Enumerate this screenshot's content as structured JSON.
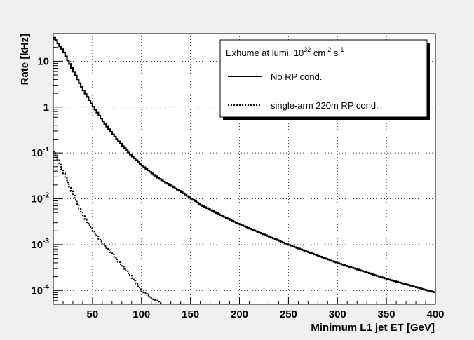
{
  "chart_data": {
    "type": "line",
    "xlabel": "Minimum L1 jet ET [GeV]",
    "ylabel": "Rate [kHz]",
    "xlim": [
      10,
      400
    ],
    "ylim": [
      5e-05,
      40
    ],
    "yscale": "log",
    "grid": true,
    "x_ticks": [
      "50",
      "100",
      "150",
      "200",
      "250",
      "300",
      "350",
      "400"
    ],
    "y_ticks": [
      {
        "base": "10",
        "exp": "-4",
        "value": 0.0001
      },
      {
        "base": "10",
        "exp": "-3",
        "value": 0.001
      },
      {
        "base": "10",
        "exp": "-2",
        "value": 0.01
      },
      {
        "base": "10",
        "exp": "-1",
        "value": 0.1
      },
      {
        "base": "1",
        "exp": "",
        "value": 1
      },
      {
        "base": "10",
        "exp": "",
        "value": 10
      }
    ],
    "legend": {
      "position": "top-right",
      "title": {
        "prefix": "Exhume at lumi. 10",
        "exp1": "32",
        "mid": " cm",
        "exp2": "-2",
        "mid2": " s",
        "exp3": "-1"
      }
    },
    "series": [
      {
        "name": "No RP cond.",
        "style": "solid",
        "color": "#000000",
        "x": [
          10,
          20,
          30,
          40,
          50,
          60,
          70,
          80,
          90,
          100,
          110,
          120,
          140,
          160,
          180,
          200,
          250,
          300,
          350,
          400
        ],
        "y": [
          35,
          17,
          6.5,
          2.5,
          1.1,
          0.52,
          0.27,
          0.15,
          0.087,
          0.055,
          0.037,
          0.026,
          0.0145,
          0.0075,
          0.0045,
          0.0028,
          0.001,
          0.0004,
          0.00018,
          9e-05
        ]
      },
      {
        "name": "single-arm 220m RP cond.",
        "style": "dotted",
        "color": "#000000",
        "x": [
          10,
          20,
          30,
          40,
          50,
          60,
          70,
          80,
          90,
          100,
          110,
          120
        ],
        "y": [
          0.12,
          0.04,
          0.013,
          0.0045,
          0.0021,
          0.0011,
          0.00065,
          0.00035,
          0.0002,
          0.0001,
          7e-05,
          5.2e-05
        ]
      }
    ]
  }
}
